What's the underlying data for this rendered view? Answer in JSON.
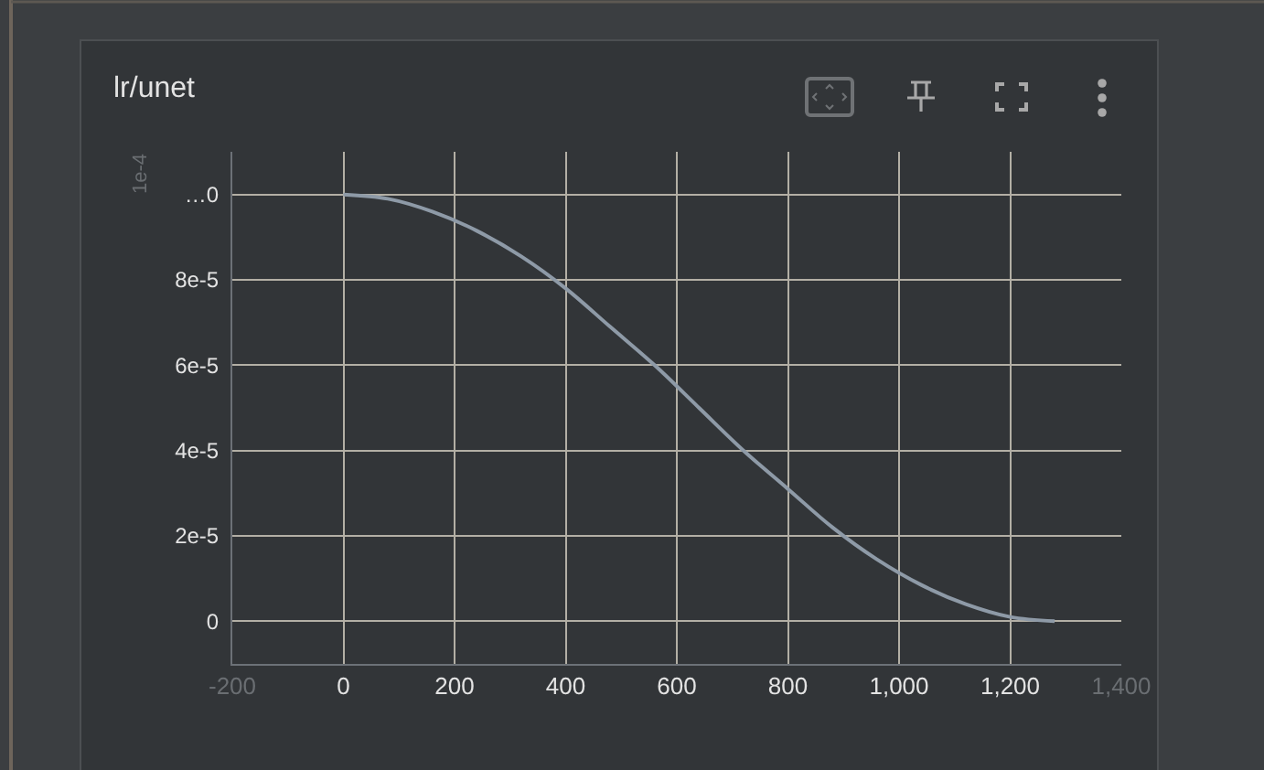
{
  "chart_data": {
    "type": "line",
    "title": "lr/unet",
    "annotations": [
      "1e-4"
    ],
    "x": [
      0,
      80,
      160,
      240,
      320,
      400,
      480,
      560,
      640,
      720,
      800,
      880,
      960,
      1040,
      1120,
      1200,
      1280
    ],
    "values": [
      0.0001,
      9.9e-05,
      9.6e-05,
      9.15e-05,
      8.55e-05,
      7.8e-05,
      6.9e-05,
      6e-05,
      5e-05,
      4e-05,
      3.1e-05,
      2.2e-05,
      1.45e-05,
      8.5e-06,
      4e-06,
      1e-06,
      0
    ],
    "color": "#8e9aa7",
    "xlim": [
      -200,
      1400
    ],
    "xticks": [
      {
        "value": -200,
        "label": "-200"
      },
      0,
      200,
      400,
      600,
      800,
      {
        "value": 1000,
        "label": "1,000"
      },
      {
        "value": 1200,
        "label": "1,200"
      },
      {
        "value": 1400,
        "label": "1,400"
      }
    ],
    "ylim": [
      -1e-05,
      0.00011
    ],
    "yticks": [
      0,
      {
        "value": 2e-05,
        "label": "2e-5"
      },
      {
        "value": 4e-05,
        "label": "4e-5"
      },
      {
        "value": 6e-05,
        "label": "6e-5"
      },
      {
        "value": 8e-05,
        "label": "8e-5"
      },
      {
        "value": 0.0001,
        "label": "…0"
      }
    ],
    "grid": true,
    "marker": "none",
    "line_style": "solid"
  }
}
